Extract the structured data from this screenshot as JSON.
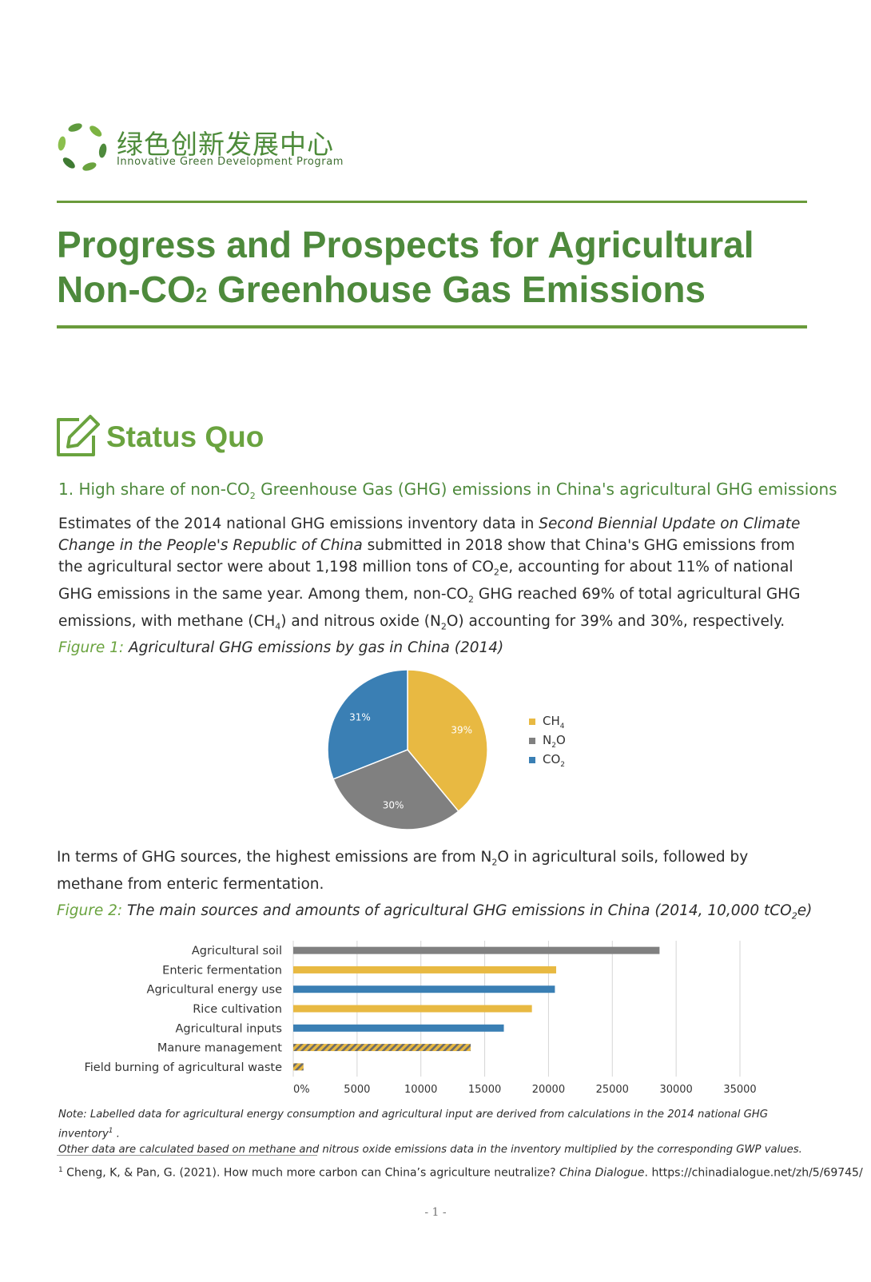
{
  "header": {
    "logo_cn": "绿色创新发展中心",
    "logo_en": "Innovative Green Development Program"
  },
  "title": {
    "line1": "Progress and Prospects for Agricultural",
    "line2_pre": "Non-CO",
    "line2_sub": "2",
    "line2_post": " Greenhouse Gas Emissions"
  },
  "section": {
    "icon": "edit-square-icon",
    "title": "Status Quo",
    "subhead_pre": "1. High share of non-CO",
    "subhead_sub": "2",
    "subhead_post": " Greenhouse Gas (GHG) emissions in China's agricultural GHG emissions"
  },
  "para1": {
    "t1": "Estimates of the 2014 national GHG emissions inventory data in ",
    "italic": "Second Biennial Update on Climate Change in the People's Republic of China",
    "t2": " submitted in 2018 show that China's GHG emissions from the agricultural sector were about 1,198 million tons of CO",
    "s1": "2",
    "t3": "e, accounting for about 11% of national GHG emissions in the same year. Among them, non-CO",
    "s2": "2",
    "t4": " GHG reached 69% of total agricultural GHG emissions, with methane (CH",
    "s3": "4",
    "t5": ") and nitrous oxide (N",
    "s4": "2",
    "t6": "O) accounting for 39% and 30%, respectively."
  },
  "figure1": {
    "label": "Figure 1:",
    "caption": " Agricultural GHG emissions by gas in China (2014)"
  },
  "para2": {
    "t1": "In terms of GHG sources, the highest emissions are from N",
    "s1": "2",
    "t2": "O in agricultural soils, followed by methane from enteric fermentation."
  },
  "figure2": {
    "label": "Figure 2:",
    "caption_pre": " The main sources and amounts of agricultural GHG emissions in China (2014, 10,000 tCO",
    "caption_sub": "2",
    "caption_post": "e)"
  },
  "chart_data": [
    {
      "type": "pie",
      "labels": [
        "CH4",
        "N2O",
        "CO2"
      ],
      "legend": [
        {
          "pre": "CH",
          "sub": "4",
          "post": ""
        },
        {
          "pre": "N",
          "sub": "2",
          "post": "O"
        },
        {
          "pre": "CO",
          "sub": "2",
          "post": ""
        }
      ],
      "values": [
        39,
        30,
        31
      ],
      "value_labels": [
        "39%",
        "30%",
        "31%"
      ],
      "colors": [
        "#E8B942",
        "#808080",
        "#3A7FB4"
      ],
      "legend_position": "right"
    },
    {
      "type": "bar",
      "orientation": "horizontal",
      "categories": [
        "Agricultural soil",
        "Enteric fermentation",
        "Agricultural energy use",
        "Rice cultivation",
        "Agricultural inputs",
        "Manure management",
        "Field burning of agricultural waste"
      ],
      "values": [
        28700,
        20600,
        20500,
        18700,
        16500,
        13900,
        800
      ],
      "colors": [
        "#808080",
        "#E8B942",
        "#3A7FB4",
        "#E8B942",
        "#3A7FB4",
        "hatched",
        "hatched"
      ],
      "xlim": [
        0,
        35000
      ],
      "xticks": [
        "0%",
        "5000",
        "10000",
        "15000",
        "20000",
        "25000",
        "30000",
        "35000"
      ],
      "grid": "vertical"
    }
  ],
  "note": {
    "line1": "Note: Labelled data for agricultural energy consumption and agricultural input are derived from calculations in the 2014 national GHG inventory",
    "sup": "1",
    "line1_end": " .",
    "line2": "Other data are calculated based on methane and nitrous oxide emissions data in the inventory multiplied by the corresponding GWP values."
  },
  "footnote": {
    "num": "1",
    "t1": " Cheng, K, & Pan, G. (2021). How much more carbon can China’s agriculture neutralize? ",
    "italic": "China Dialogue",
    "t2": ". https://chinadialogue.net/zh/5/69745/"
  },
  "page_number": "- 1 -"
}
